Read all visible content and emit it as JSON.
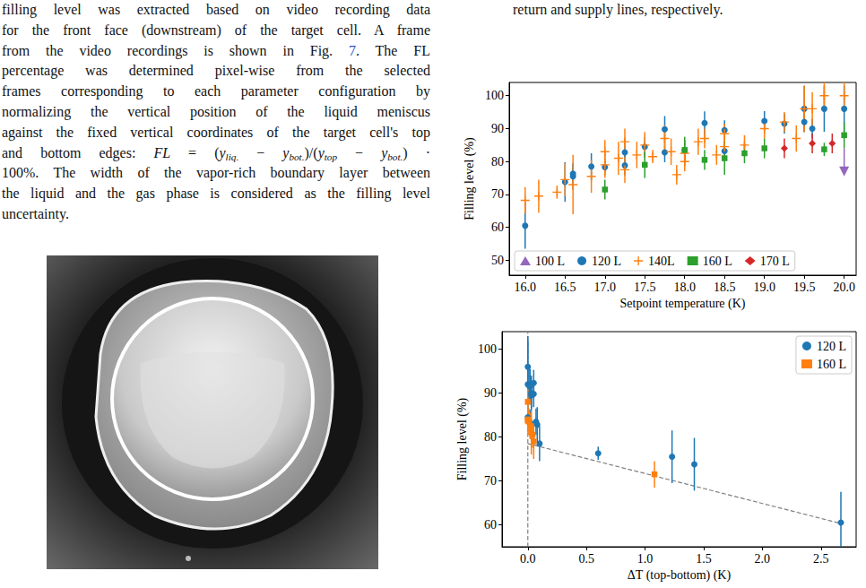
{
  "text_left": {
    "lines": [
      [
        {
          "text": "filling level was extracted based on video recording data"
        }
      ],
      [
        {
          "text": "for the front face (downstream) of the target cell. A frame"
        }
      ],
      [
        {
          "text": "from the video recordings is shown in Fig. "
        },
        {
          "text": "7",
          "style": "link"
        },
        {
          "text": ". The FL"
        }
      ],
      [
        {
          "text": "percentage was determined pixel-wise from the selected"
        }
      ],
      [
        {
          "text": "frames corresponding to each parameter configuration by"
        }
      ],
      [
        {
          "text": "normalizing the vertical position of the liquid meniscus"
        }
      ],
      [
        {
          "text": "against the fixed vertical coordinates of the target cell's top"
        }
      ],
      [
        {
          "text": "and bottom edges: "
        },
        {
          "text": "FL",
          "style": "italic"
        },
        {
          "text": " = ("
        },
        {
          "text": "y",
          "style": "italic"
        },
        {
          "text": "liq.",
          "style": "isub"
        },
        {
          "text": " − "
        },
        {
          "text": "y",
          "style": "italic"
        },
        {
          "text": "bot.",
          "style": "isub"
        },
        {
          "text": ")/("
        },
        {
          "text": "y",
          "style": "italic"
        },
        {
          "text": "top",
          "style": "isub"
        },
        {
          "text": " − "
        },
        {
          "text": "y",
          "style": "italic"
        },
        {
          "text": "bot.",
          "style": "isub"
        },
        {
          "text": ") ·"
        }
      ],
      [
        {
          "text": "100%. The width of the vapor-rich boundary layer between"
        }
      ],
      [
        {
          "text": "the liquid and the gas phase is considered as the filling level"
        }
      ],
      [
        {
          "text": "uncertainty."
        }
      ]
    ]
  },
  "text_right": {
    "lines": [
      [
        {
          "text": "return and supply lines, respectively."
        }
      ]
    ]
  },
  "chart_data": [
    {
      "type": "scatter",
      "xlabel": "Setpoint temperature (K)",
      "ylabel": "Filling level (%)",
      "xlim": [
        15.8,
        20.15
      ],
      "xticks": [
        {
          "value": 16,
          "label": "16.0"
        },
        16.5,
        {
          "value": 17,
          "label": "17.0"
        },
        17.5,
        {
          "value": 18,
          "label": "18.0"
        },
        18.5,
        {
          "value": 19,
          "label": "19.0"
        },
        19.5,
        {
          "value": 20,
          "label": "20.0"
        }
      ],
      "ylim": [
        45.5,
        104
      ],
      "yticks": [
        50,
        60,
        70,
        80,
        90,
        100
      ],
      "grid": false,
      "legend": "lower center",
      "series": [
        {
          "name": "100 L",
          "color": "#9467bd",
          "marker": "triangle-down",
          "x": [
            20.0
          ],
          "values": [
            77
          ],
          "yerr_minus": [
            0
          ],
          "yerr_plus": [
            7
          ]
        },
        {
          "name": "120 L",
          "color": "#1f77b4",
          "marker": "circle",
          "x": [
            16.0,
            16.5,
            16.6,
            16.6,
            16.83,
            17.0,
            17.25,
            17.25,
            17.5,
            17.75,
            17.75,
            18.0,
            18.25,
            18.5,
            18.5,
            19.0,
            19.25,
            19.5,
            19.5,
            19.6,
            19.75,
            20.0
          ],
          "values": [
            60.5,
            73.8,
            75.5,
            76.3,
            78.5,
            78.3,
            78.8,
            82.8,
            84.5,
            82.8,
            89.8,
            83.4,
            91.7,
            83.2,
            89.5,
            92.3,
            91.5,
            92.0,
            96.0,
            90.0,
            96.0,
            96.0
          ],
          "yerr": [
            7,
            6,
            4,
            3,
            4,
            2.5,
            3,
            4,
            3,
            3,
            4,
            3,
            3.5,
            3,
            3,
            3,
            3,
            3,
            7,
            3,
            7,
            7
          ]
        },
        {
          "name": "140L",
          "color": "#ff7f0e",
          "marker": "plus",
          "x": [
            16.0,
            16.17,
            16.4,
            16.5,
            16.6,
            16.83,
            17.0,
            17.0,
            17.17,
            17.25,
            17.25,
            17.4,
            17.5,
            17.6,
            17.75,
            17.83,
            17.9,
            18.0,
            18.0,
            18.17,
            18.25,
            18.4,
            18.5,
            18.5,
            18.75,
            19.0,
            19.25,
            19.4,
            19.5,
            19.6,
            19.75,
            20.0
          ],
          "values": [
            68.2,
            69.5,
            70.7,
            74.5,
            73.0,
            75.5,
            83.0,
            79.0,
            81.0,
            86.0,
            77.5,
            82.0,
            85.0,
            81.5,
            87.0,
            83.0,
            76.0,
            82.5,
            80.0,
            86.0,
            87.0,
            82.0,
            88.5,
            84.5,
            85.0,
            90.0,
            92.0,
            87.0,
            96.0,
            96.0,
            100.0,
            100.0
          ],
          "yerr": [
            4,
            5,
            2,
            5,
            9,
            5,
            3.5,
            4,
            5,
            4,
            4,
            4,
            4,
            2,
            4,
            4,
            3,
            4,
            3,
            4,
            3,
            3,
            3,
            3,
            3,
            3,
            3,
            4,
            7,
            5,
            4,
            4
          ]
        },
        {
          "name": "160 L",
          "color": "#2ca02c",
          "marker": "square",
          "x": [
            17.0,
            17.5,
            18.0,
            18.25,
            18.5,
            18.75,
            19.0,
            19.75,
            20.0
          ],
          "values": [
            71.5,
            79.0,
            83.5,
            80.5,
            81.0,
            82.5,
            84.0,
            83.7,
            88.0
          ],
          "yerr": [
            3,
            4,
            4,
            3,
            5,
            3,
            3,
            2,
            4
          ]
        },
        {
          "name": "170 L",
          "color": "#d62728",
          "marker": "diamond",
          "x": [
            19.25,
            19.6,
            19.85
          ],
          "values": [
            84.0,
            85.5,
            85.5
          ],
          "yerr": [
            3,
            3,
            3
          ]
        }
      ]
    },
    {
      "type": "scatter",
      "xlabel": "ΔT (top-bottom) (K)",
      "ylabel": "Filling level (%)",
      "xlim": [
        -0.22,
        2.8
      ],
      "xticks": [
        {
          "value": 0,
          "label": "0.0"
        },
        0.5,
        {
          "value": 1,
          "label": "1.0"
        },
        1.5,
        {
          "value": 2,
          "label": "2.0"
        },
        2.5
      ],
      "ylim": [
        55,
        104
      ],
      "yticks": [
        60,
        70,
        80,
        90,
        100
      ],
      "grid": false,
      "legend": "upper right",
      "series": [
        {
          "name": "120 L",
          "color": "#1f77b4",
          "marker": "circle",
          "x": [
            2.67,
            1.42,
            1.23,
            0.6,
            0.0,
            0.0,
            0.01,
            0.02,
            0.03,
            0.03,
            0.05,
            0.05,
            0.07,
            0.08,
            0.1,
            0.0,
            0.02
          ],
          "values": [
            60.5,
            73.8,
            75.5,
            76.3,
            92.0,
            96.0,
            91.7,
            91.5,
            90.0,
            89.5,
            92.3,
            89.8,
            83.5,
            82.8,
            78.5,
            84.5,
            83.2
          ],
          "yerr": [
            7,
            6,
            6,
            1.5,
            10,
            7,
            4,
            4,
            4,
            3,
            3,
            3,
            3,
            4,
            4,
            3,
            3
          ]
        },
        {
          "name": "160 L",
          "color": "#ff7f0e",
          "marker": "square",
          "x": [
            1.08,
            0.0,
            0.0,
            0.01,
            0.02,
            0.03,
            0.04,
            0.05,
            0.0
          ],
          "values": [
            71.5,
            88.0,
            84.0,
            83.5,
            82.5,
            81.0,
            80.5,
            79.0,
            83.7
          ],
          "yerr": [
            3,
            4,
            3,
            3,
            3,
            5,
            3,
            4,
            2
          ]
        }
      ],
      "lines": [
        {
          "x": [
            0,
            2.67
          ],
          "y": [
            78.5,
            60.3
          ],
          "color": "#808080",
          "line_style": "dashed"
        }
      ],
      "vlines": [
        {
          "x": 0,
          "color": "#808080",
          "line_style": "dashed"
        }
      ]
    }
  ]
}
